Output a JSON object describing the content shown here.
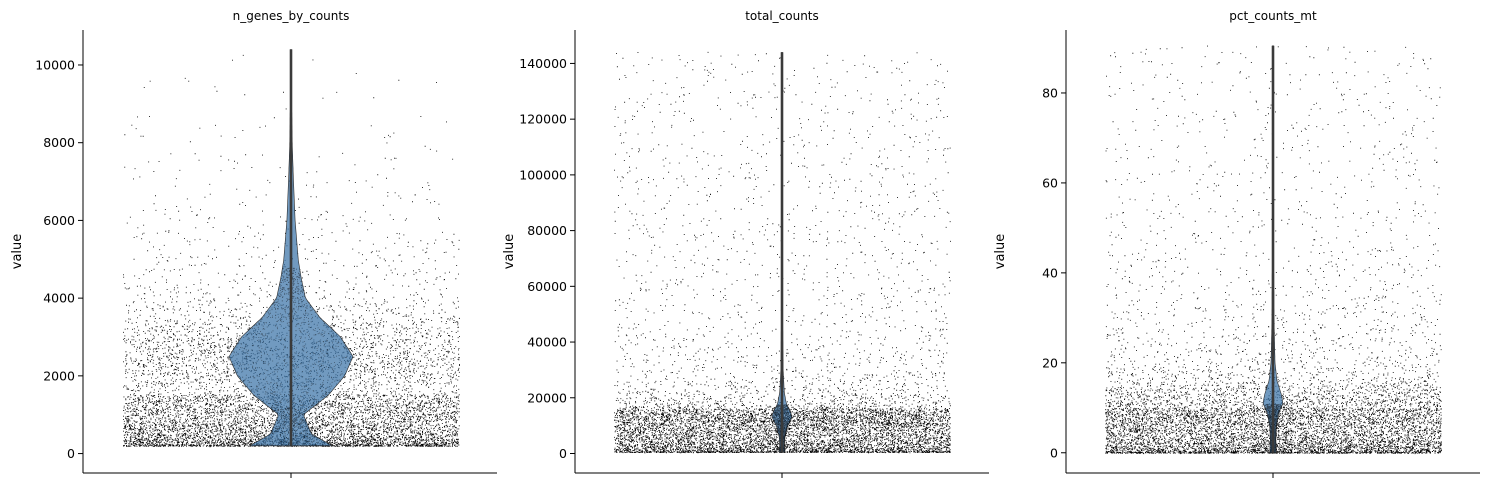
{
  "chart_data": [
    {
      "type": "violin",
      "title": "n_genes_by_counts",
      "ylabel": "value",
      "ylim": [
        -500,
        10900
      ],
      "yticks": [
        0,
        2000,
        4000,
        6000,
        8000,
        10000
      ],
      "tick_labels": [
        "0",
        "2000",
        "4000",
        "6000",
        "8000",
        "10000"
      ],
      "min": 200,
      "median": 1000,
      "max": 10400,
      "density_profile": [
        [
          200,
          0.2
        ],
        [
          500,
          0.1
        ],
        [
          1000,
          0.06
        ],
        [
          1500,
          0.18
        ],
        [
          2000,
          0.26
        ],
        [
          2500,
          0.3
        ],
        [
          3000,
          0.24
        ],
        [
          3500,
          0.14
        ],
        [
          4000,
          0.07
        ],
        [
          4500,
          0.05
        ],
        [
          5000,
          0.035
        ],
        [
          6000,
          0.02
        ],
        [
          7000,
          0.012
        ],
        [
          8000,
          0.006
        ],
        [
          9000,
          0.003
        ],
        [
          10400,
          0.001
        ]
      ],
      "violin_color": "#3a73a8"
    },
    {
      "type": "violin",
      "title": "total_counts",
      "ylabel": "value",
      "ylim": [
        -7000,
        152000
      ],
      "yticks": [
        0,
        20000,
        40000,
        60000,
        80000,
        100000,
        120000,
        140000
      ],
      "tick_labels": [
        "0",
        "20000",
        "40000",
        "60000",
        "80000",
        "100000",
        "120000",
        "140000"
      ],
      "min": 500,
      "median": 2000,
      "max": 144000,
      "density_profile": [
        [
          500,
          0.01
        ],
        [
          3000,
          0.008
        ],
        [
          6000,
          0.01
        ],
        [
          10000,
          0.02
        ],
        [
          13000,
          0.035
        ],
        [
          15000,
          0.03
        ],
        [
          18000,
          0.015
        ],
        [
          22000,
          0.008
        ],
        [
          30000,
          0.004
        ],
        [
          50000,
          0.002
        ],
        [
          144000,
          0.001
        ]
      ],
      "violin_color": "#3a73a8"
    },
    {
      "type": "violin",
      "title": "pct_counts_mt",
      "ylabel": "value",
      "ylim": [
        -4.5,
        94
      ],
      "yticks": [
        0,
        20,
        40,
        60,
        80
      ],
      "tick_labels": [
        "0",
        "20",
        "40",
        "60",
        "80"
      ],
      "min": 0,
      "median": 3,
      "max": 90.5,
      "density_profile": [
        [
          0,
          0.01
        ],
        [
          3,
          0.008
        ],
        [
          6,
          0.01
        ],
        [
          9,
          0.018
        ],
        [
          11,
          0.03
        ],
        [
          13,
          0.025
        ],
        [
          16,
          0.012
        ],
        [
          20,
          0.006
        ],
        [
          30,
          0.003
        ],
        [
          50,
          0.0015
        ],
        [
          90.5,
          0.001
        ]
      ],
      "violin_color": "#3a73a8"
    }
  ]
}
